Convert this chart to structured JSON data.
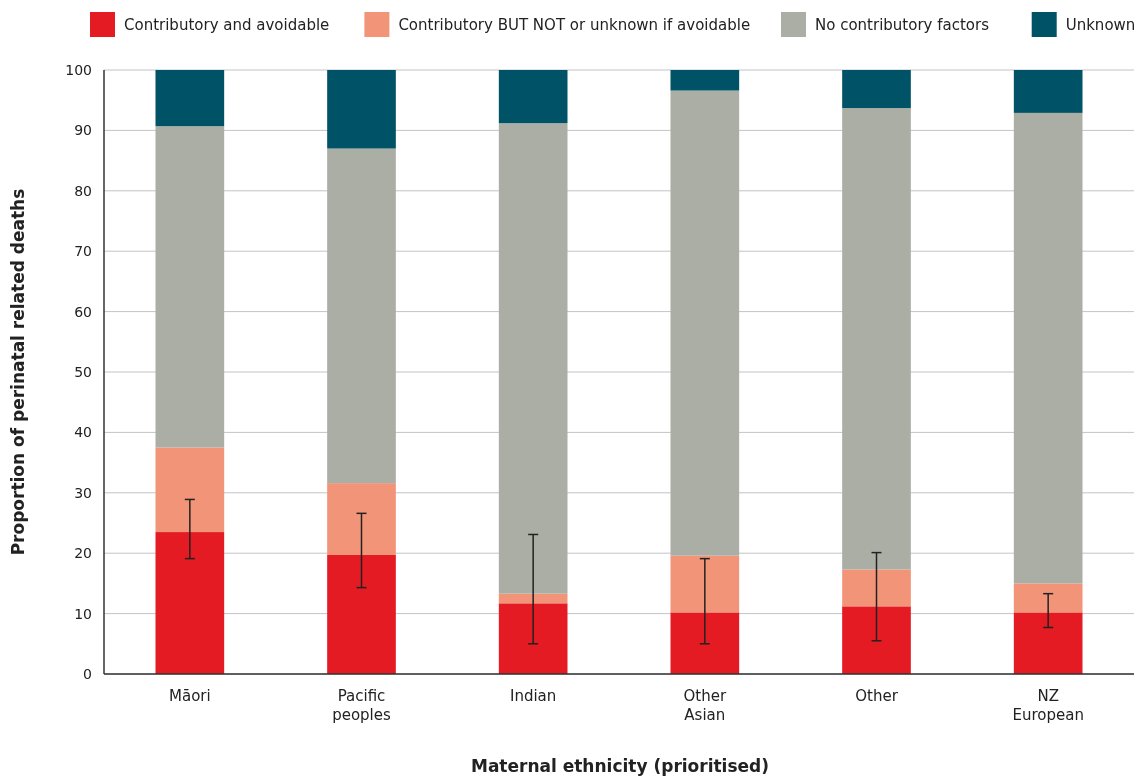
{
  "chart_data": {
    "type": "bar",
    "stacked": true,
    "categories": [
      "Māori",
      "Pacific peoples",
      "Indian",
      "Other Asian",
      "Other",
      "NZ European"
    ],
    "xlabel": "Maternal ethnicity (prioritised)",
    "ylabel": "Proportion of perinatal related deaths",
    "series": [
      {
        "name": "Contributory and avoidable",
        "color": "#e41b23",
        "values": [
          23.5,
          19.7,
          11.7,
          10.2,
          11.2,
          10.2
        ],
        "errors": [
          [
            19.1,
            28.9
          ],
          [
            14.3,
            26.6
          ],
          [
            5.0,
            23.1
          ],
          [
            5.0,
            19.1
          ],
          [
            5.5,
            20.1
          ],
          [
            7.7,
            13.3
          ]
        ]
      },
      {
        "name": "Contributory BUT NOT or unknown if avoidable",
        "color": "#f19478",
        "values": [
          14.0,
          11.9,
          1.6,
          9.4,
          6.1,
          4.8
        ]
      },
      {
        "name": "No contributory factors",
        "color": "#abaea5",
        "values": [
          53.2,
          55.4,
          77.9,
          77.0,
          76.4,
          77.9
        ]
      },
      {
        "name": "Unknown",
        "color": "#005366",
        "values": [
          9.3,
          13.0,
          8.8,
          3.4,
          6.3,
          7.1
        ]
      }
    ],
    "ylim": [
      0,
      100
    ],
    "yticks": [
      0,
      10,
      20,
      30,
      40,
      50,
      60,
      70,
      80,
      90,
      100
    ],
    "grid": "y",
    "legend": "top"
  }
}
